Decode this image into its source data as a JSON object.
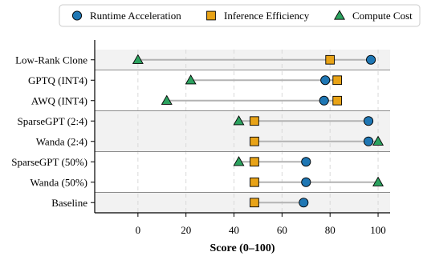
{
  "chart_data": {
    "type": "scatter",
    "subtype": "dot-plot",
    "title": "",
    "xlabel": "Score (0–100)",
    "ylabel": "",
    "xlim": [
      -18,
      105
    ],
    "xticks": [
      0,
      20,
      40,
      60,
      80,
      100
    ],
    "grid": "x-dashed",
    "legend_position": "top",
    "categories": [
      "Low-Rank Clone",
      "GPTQ (INT4)",
      "AWQ (INT4)",
      "SparseGPT (2:4)",
      "Wanda (2:4)",
      "SparseGPT (50%)",
      "Wanda (50%)",
      "Baseline"
    ],
    "groups": [
      {
        "rows": [
          0
        ],
        "shaded": true
      },
      {
        "rows": [
          1,
          2
        ],
        "shaded": false
      },
      {
        "rows": [
          3,
          4
        ],
        "shaded": true
      },
      {
        "rows": [
          5,
          6
        ],
        "shaded": false
      },
      {
        "rows": [
          7
        ],
        "shaded": true
      }
    ],
    "series": [
      {
        "name": "Runtime Acceleration",
        "marker": "circle",
        "color": "#1f77b4",
        "values": [
          97,
          78,
          77.5,
          96,
          96,
          70,
          70,
          69
        ]
      },
      {
        "name": "Inference Efficiency",
        "marker": "square",
        "color": "#e8a317",
        "values": [
          80,
          83,
          83,
          48.5,
          48.5,
          48.5,
          48.5,
          48.5
        ]
      },
      {
        "name": "Compute Cost",
        "marker": "triangle",
        "color": "#2ca25f",
        "values": [
          0,
          22,
          12,
          42,
          100,
          42,
          100,
          null
        ]
      }
    ]
  }
}
